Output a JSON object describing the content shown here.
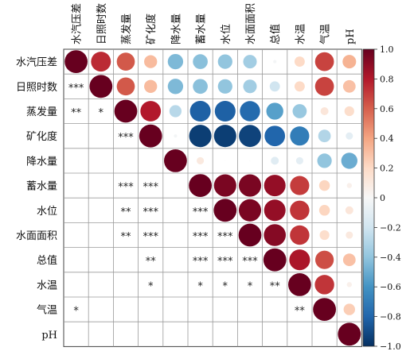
{
  "chart_data": {
    "type": "heatmap",
    "variables": [
      "水汽压差",
      "日照时数",
      "蒸发量",
      "矿化度",
      "降水量",
      "蓄水量",
      "水位",
      "水面面积",
      "总值",
      "水温",
      "气温",
      "pH"
    ],
    "upper_correlations": [
      [
        1.0,
        0.75,
        0.62,
        0.32,
        -0.45,
        -0.42,
        -0.4,
        -0.35,
        -0.02,
        0.2,
        0.68,
        0.35
      ],
      [
        null,
        1.0,
        0.62,
        0.32,
        -0.45,
        -0.42,
        -0.4,
        -0.35,
        -0.2,
        0.2,
        0.68,
        0.3
      ],
      [
        null,
        null,
        1.0,
        0.8,
        -0.28,
        -0.82,
        -0.82,
        -0.78,
        -0.55,
        -0.38,
        0.12,
        0.18
      ],
      [
        null,
        null,
        null,
        1.0,
        -0.02,
        -0.95,
        -0.95,
        -0.93,
        -0.8,
        -0.7,
        -0.3,
        -0.1
      ],
      [
        null,
        null,
        null,
        null,
        1.0,
        0.1,
        0.0,
        0.0,
        -0.12,
        -0.1,
        -0.4,
        -0.5
      ],
      [
        null,
        null,
        null,
        null,
        null,
        1.0,
        0.95,
        0.95,
        0.88,
        0.7,
        0.22,
        0.05
      ],
      [
        null,
        null,
        null,
        null,
        null,
        null,
        1.0,
        0.95,
        0.88,
        0.72,
        0.22,
        0.12
      ],
      [
        null,
        null,
        null,
        null,
        null,
        null,
        null,
        1.0,
        0.92,
        0.72,
        0.18,
        0.1
      ],
      [
        null,
        null,
        null,
        null,
        null,
        null,
        null,
        null,
        1.0,
        0.82,
        0.65,
        0.3
      ],
      [
        null,
        null,
        null,
        null,
        null,
        null,
        null,
        null,
        null,
        1.0,
        0.72,
        0.05
      ],
      [
        null,
        null,
        null,
        null,
        null,
        null,
        null,
        null,
        null,
        null,
        1.0,
        0.25
      ],
      [
        null,
        null,
        null,
        null,
        null,
        null,
        null,
        null,
        null,
        null,
        null,
        1.0
      ]
    ],
    "lower_significance": [
      [
        "",
        "",
        "",
        "",
        "",
        "",
        "",
        "",
        "",
        "",
        "",
        ""
      ],
      [
        "***",
        "",
        "",
        "",
        "",
        "",
        "",
        "",
        "",
        "",
        "",
        ""
      ],
      [
        "**",
        "*",
        "",
        "",
        "",
        "",
        "",
        "",
        "",
        "",
        "",
        ""
      ],
      [
        "",
        "",
        "***",
        "",
        "",
        "",
        "",
        "",
        "",
        "",
        "",
        ""
      ],
      [
        "",
        "",
        "",
        "",
        "",
        "",
        "",
        "",
        "",
        "",
        "",
        ""
      ],
      [
        "",
        "",
        "***",
        "***",
        "",
        "",
        "",
        "",
        "",
        "",
        "",
        ""
      ],
      [
        "",
        "",
        "**",
        "***",
        "",
        "***",
        "",
        "",
        "",
        "",
        "",
        ""
      ],
      [
        "",
        "",
        "**",
        "***",
        "",
        "***",
        "***",
        "",
        "",
        "",
        "",
        ""
      ],
      [
        "",
        "",
        "",
        "**",
        "",
        "***",
        "***",
        "***",
        "",
        "",
        "",
        ""
      ],
      [
        "",
        "",
        "",
        "*",
        "",
        "*",
        "*",
        "*",
        "**",
        "",
        "",
        ""
      ],
      [
        "*",
        "",
        "",
        "",
        "",
        "",
        "",
        "",
        "",
        "**",
        "",
        ""
      ],
      [
        "",
        "",
        "",
        "",
        "",
        "",
        "",
        "",
        "",
        "",
        "",
        ""
      ]
    ],
    "colorbar": {
      "range": [
        -1.0,
        1.0
      ],
      "ticks": [
        "1.0",
        "0.8",
        "0.6",
        "0.4",
        "0.2",
        "0",
        "−0.2",
        "−0.4",
        "−0.6",
        "−0.8",
        "−1.0"
      ],
      "colors": [
        "#67001f",
        "#b2182b",
        "#d6604d",
        "#f4a582",
        "#fddbc7",
        "#f7f7f7",
        "#d1e5f0",
        "#92c5de",
        "#4393c3",
        "#2166ac",
        "#053061"
      ]
    }
  }
}
